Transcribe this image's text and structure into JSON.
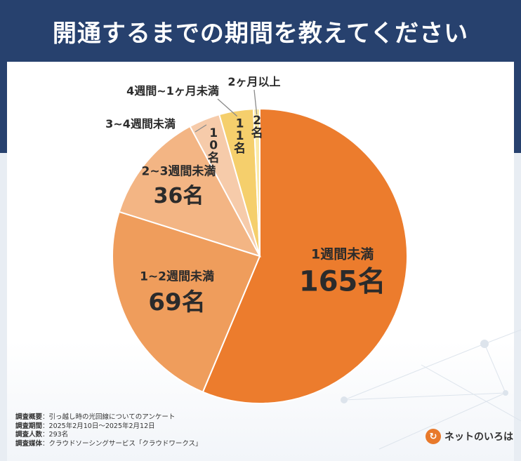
{
  "title": "開通するまでの期間を教えてください",
  "chart_data": {
    "type": "pie",
    "title": "開通するまでの期間を教えてください",
    "unit": "名",
    "total": 293,
    "slices": [
      {
        "label": "1週間未満",
        "value": 165,
        "value_text": "165名",
        "color": "#ec7c2d"
      },
      {
        "label": "1~2週間未満",
        "value": 69,
        "value_text": "69名",
        "color": "#ef9d5c"
      },
      {
        "label": "2~3週間未満",
        "value": 36,
        "value_text": "36名",
        "color": "#f3b584"
      },
      {
        "label": "3~4週間未満",
        "value": 10,
        "value_text": "10名",
        "color": "#f6cbaa"
      },
      {
        "label": "4週間~1ヶ月未満",
        "value": 11,
        "value_text": "11名",
        "color": "#f5cf6c"
      },
      {
        "label": "2ヶ月以上",
        "value": 2,
        "value_text": "2名",
        "color": "#fbeaa6"
      }
    ]
  },
  "footnote": {
    "rows": [
      {
        "key": "調査概要",
        "value": "引っ越し時の光回線についてのアンケート"
      },
      {
        "key": "調査期間",
        "value": "2025年2月10日〜2025年2月12日"
      },
      {
        "key": "調査人数",
        "value": "293名"
      },
      {
        "key": "調査媒体",
        "value": "クラウドソーシングサービス「クラウドワークス」"
      }
    ]
  },
  "logo": {
    "mark": "↻",
    "text": "ネットのいろは"
  }
}
